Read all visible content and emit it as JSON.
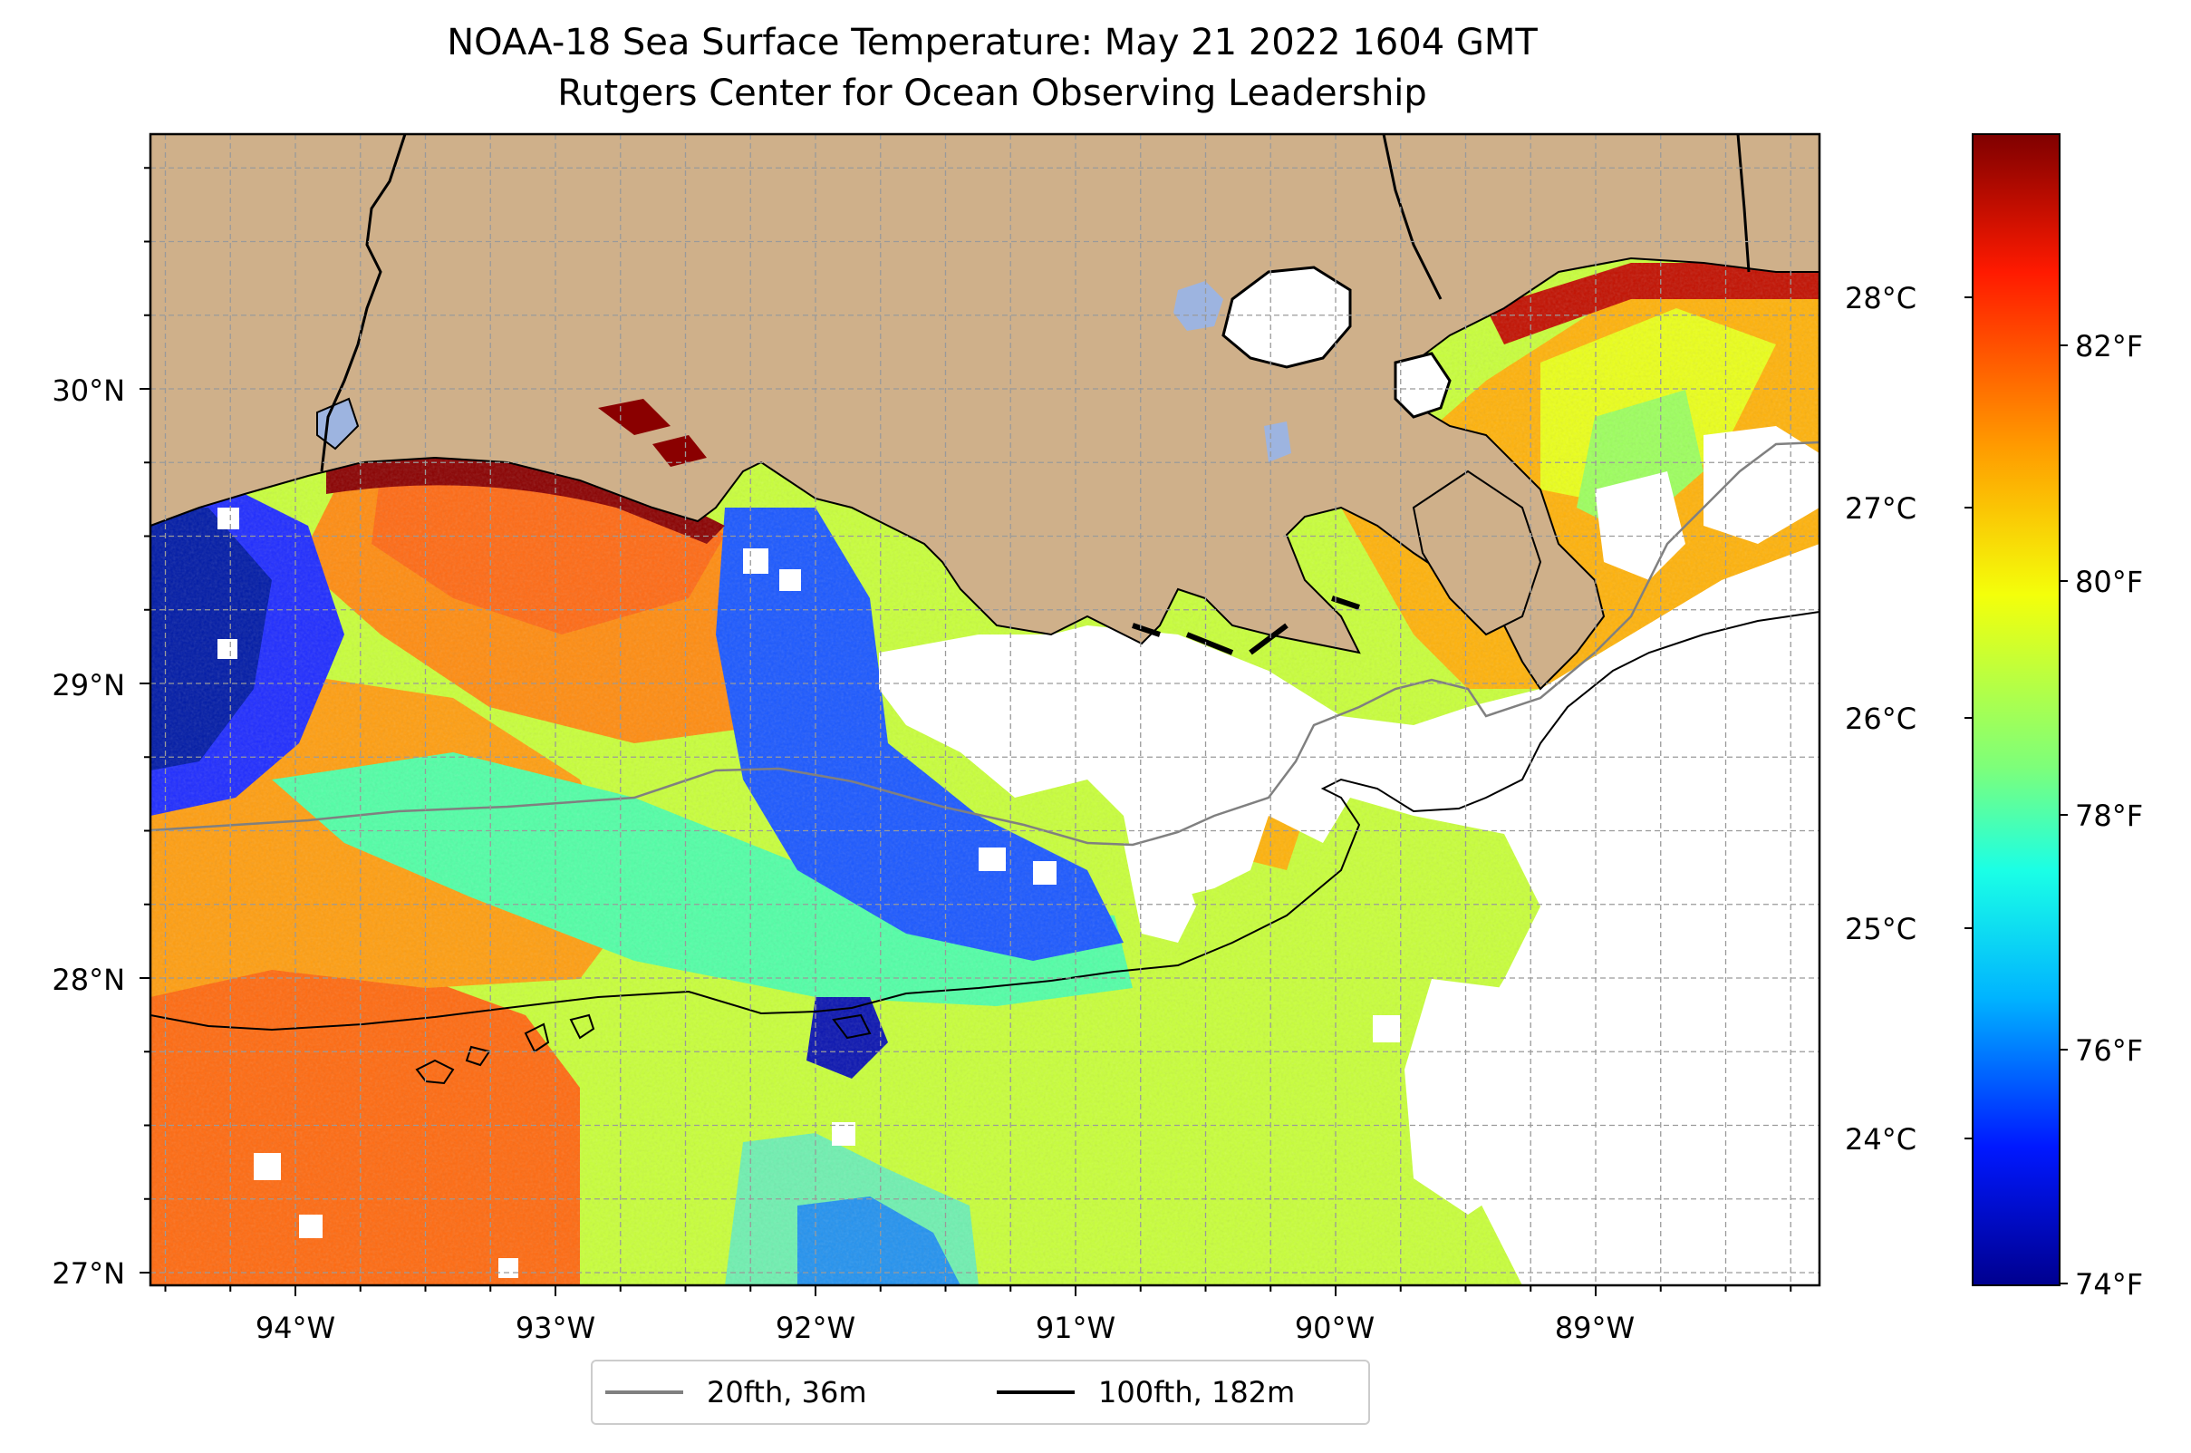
{
  "title": {
    "line1": "NOAA-18 Sea Surface Temperature: May 21 2022 1604 GMT",
    "line2": "Rutgers Center for Ocean Observing Leadership"
  },
  "map": {
    "lat_ticks": [
      "30°N",
      "29°N",
      "28°N",
      "27°N"
    ],
    "lon_ticks": [
      "94°W",
      "93°W",
      "92°W",
      "91°W",
      "90°W",
      "89°W"
    ],
    "gridlines": true,
    "land_color": "#cfb08a",
    "cloud_mask_color": "#ffffff",
    "lake_color": "#9db4e0"
  },
  "colorbar": {
    "colormap": "jet",
    "celsius_ticks": [
      "28°C",
      "27°C",
      "26°C",
      "25°C",
      "24°C"
    ],
    "fahrenheit_ticks": [
      "82°F",
      "80°F",
      "78°F",
      "76°F",
      "74°F"
    ],
    "colors": [
      "#7f0000",
      "#ff2000",
      "#ff9a00",
      "#e6ff1a",
      "#7dff7a",
      "#1affe6",
      "#00b2ff",
      "#0028ff",
      "#00008f"
    ]
  },
  "legend": {
    "items": [
      {
        "label": "20fth, 36m",
        "color": "#808080"
      },
      {
        "label": "100fth, 182m",
        "color": "#000000"
      }
    ]
  }
}
